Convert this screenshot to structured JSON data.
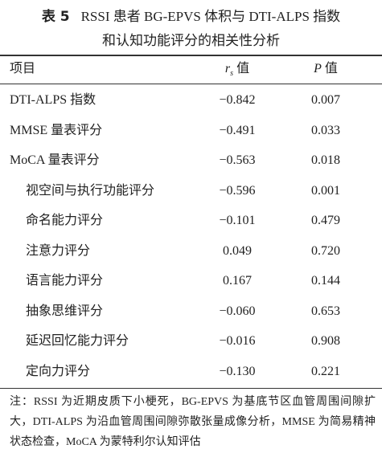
{
  "title": {
    "label": "表 5",
    "line1": "RSSI 患者 BG-EPVS 体积与 DTI-ALPS 指数",
    "line2": "和认知功能评分的相关性分析"
  },
  "table": {
    "header": [
      "项目",
      {
        "symbol": "r",
        "subscript": "s",
        "text": "值"
      },
      {
        "symbol": "P",
        "text": "值"
      }
    ],
    "rows": [
      {
        "item": "DTI-ALPS 指数",
        "sub": false,
        "rs": "−0.842",
        "p": "0.007"
      },
      {
        "item": "MMSE 量表评分",
        "sub": false,
        "rs": "−0.491",
        "p": "0.033"
      },
      {
        "item": "MoCA 量表评分",
        "sub": false,
        "rs": "−0.563",
        "p": "0.018"
      },
      {
        "item": "视空间与执行功能评分",
        "sub": true,
        "rs": "−0.596",
        "p": "0.001"
      },
      {
        "item": "命名能力评分",
        "sub": true,
        "rs": "−0.101",
        "p": "0.479"
      },
      {
        "item": "注意力评分",
        "sub": true,
        "rs": "0.049",
        "p": "0.720"
      },
      {
        "item": "语言能力评分",
        "sub": true,
        "rs": "0.167",
        "p": "0.144"
      },
      {
        "item": "抽象思维评分",
        "sub": true,
        "rs": "−0.060",
        "p": "0.653"
      },
      {
        "item": "延迟回忆能力评分",
        "sub": true,
        "rs": "−0.016",
        "p": "0.908"
      },
      {
        "item": "定向力评分",
        "sub": true,
        "rs": "−0.130",
        "p": "0.221"
      }
    ]
  },
  "note": "注：RSSI 为近期皮质下小梗死，BG-EPVS 为基底节区血管周围间隙扩大，DTI-ALPS 为沿血管周围间隙弥散张量成像分析，MMSE 为简易精神状态检查，MoCA 为蒙特利尔认知评估"
}
